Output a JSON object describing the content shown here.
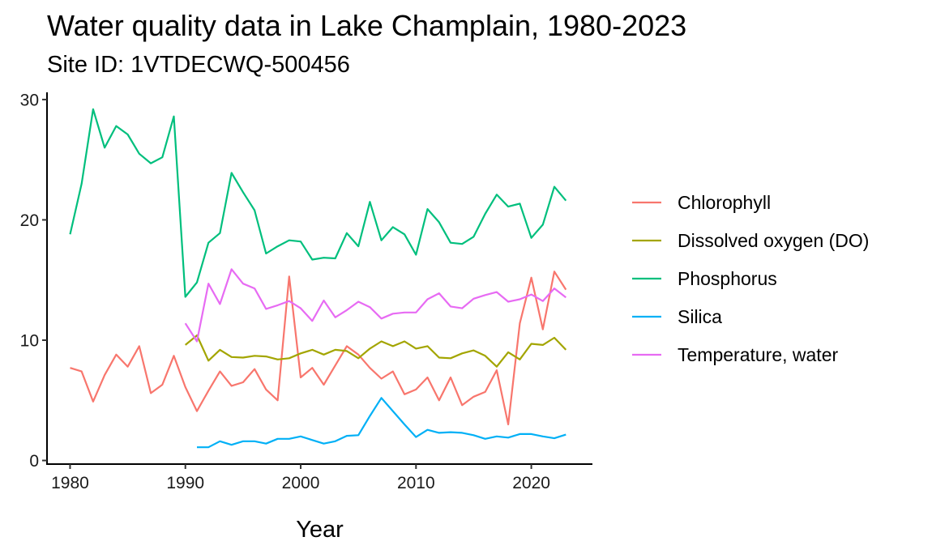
{
  "chart_data": {
    "type": "line",
    "title": "Water quality data in Lake Champlain, 1980-2023",
    "subtitle": "Site ID: 1VTDECWQ-500456",
    "xlabel": "Year",
    "ylabel": "",
    "xlim": [
      1978,
      2025.3
    ],
    "ylim": [
      -0.3,
      30.6
    ],
    "x_ticks": [
      1980,
      1990,
      2000,
      2010,
      2020
    ],
    "y_ticks": [
      0,
      10,
      20,
      30
    ],
    "grid": false,
    "legend_position": "right",
    "series": [
      {
        "name": "Chlorophyll",
        "color": "#F8766D",
        "x": [
          1980,
          1981,
          1982,
          1983,
          1984,
          1985,
          1986,
          1987,
          1988,
          1989,
          1990,
          1991,
          1992,
          1993,
          1994,
          1995,
          1996,
          1997,
          1998,
          1999,
          2000,
          2001,
          2002,
          2003,
          2004,
          2005,
          2006,
          2007,
          2008,
          2009,
          2010,
          2011,
          2012,
          2013,
          2014,
          2015,
          2016,
          2017,
          2018,
          2019,
          2020,
          2021,
          2022,
          2023
        ],
        "y": [
          7.7,
          7.4,
          4.9,
          7.1,
          8.8,
          7.8,
          9.5,
          5.6,
          6.3,
          8.7,
          6.1,
          4.1,
          5.8,
          7.4,
          6.2,
          6.5,
          7.6,
          5.9,
          5.0,
          15.3,
          6.9,
          7.7,
          6.3,
          7.9,
          9.5,
          8.8,
          7.7,
          6.8,
          7.4,
          5.5,
          5.9,
          6.9,
          5.0,
          6.9,
          4.6,
          5.3,
          5.7,
          7.5,
          3.0,
          11.4,
          15.2,
          10.9,
          15.7,
          14.2
        ]
      },
      {
        "name": "Dissolved oxygen (DO)",
        "color": "#A3A500",
        "x": [
          1990,
          1991,
          1992,
          1993,
          1994,
          1995,
          1996,
          1997,
          1998,
          1999,
          2000,
          2001,
          2002,
          2003,
          2004,
          2005,
          2006,
          2007,
          2008,
          2009,
          2010,
          2011,
          2012,
          2013,
          2014,
          2015,
          2016,
          2017,
          2018,
          2019,
          2020,
          2021,
          2022,
          2023
        ],
        "y": [
          9.6,
          10.4,
          8.3,
          9.2,
          8.6,
          8.55,
          8.7,
          8.65,
          8.4,
          8.5,
          8.9,
          9.2,
          8.8,
          9.2,
          9.1,
          8.5,
          9.3,
          9.9,
          9.5,
          9.9,
          9.3,
          9.5,
          8.55,
          8.5,
          8.9,
          9.15,
          8.7,
          7.8,
          9.0,
          8.4,
          9.7,
          9.6,
          10.2,
          9.2
        ]
      },
      {
        "name": "Phosphorus",
        "color": "#00BF7D",
        "x": [
          1980,
          1981,
          1982,
          1983,
          1984,
          1985,
          1986,
          1987,
          1988,
          1989,
          1990,
          1991,
          1992,
          1993,
          1994,
          1995,
          1996,
          1997,
          1998,
          1999,
          2000,
          2001,
          2002,
          2003,
          2004,
          2005,
          2006,
          2007,
          2008,
          2009,
          2010,
          2011,
          2012,
          2013,
          2014,
          2015,
          2016,
          2017,
          2018,
          2019,
          2020,
          2021,
          2022,
          2023
        ],
        "y": [
          18.8,
          23.0,
          29.2,
          26.0,
          27.8,
          27.1,
          25.5,
          24.7,
          25.2,
          28.6,
          13.6,
          14.8,
          18.1,
          18.9,
          23.9,
          22.3,
          20.8,
          17.2,
          17.8,
          18.3,
          18.2,
          16.7,
          16.85,
          16.8,
          18.9,
          17.8,
          21.5,
          18.3,
          19.4,
          18.8,
          17.1,
          20.9,
          19.8,
          18.1,
          18.0,
          18.6,
          20.5,
          22.1,
          21.1,
          21.35,
          18.5,
          19.6,
          22.75,
          21.6
        ]
      },
      {
        "name": "Silica",
        "color": "#00B0F6",
        "x": [
          1991,
          1992,
          1993,
          1994,
          1995,
          1996,
          1997,
          1998,
          1999,
          2000,
          2001,
          2002,
          2003,
          2004,
          2005,
          2006,
          2007,
          2008,
          2009,
          2010,
          2011,
          2012,
          2013,
          2014,
          2015,
          2016,
          2017,
          2018,
          2019,
          2020,
          2021,
          2022,
          2023
        ],
        "y": [
          1.1,
          1.1,
          1.6,
          1.3,
          1.6,
          1.6,
          1.4,
          1.8,
          1.8,
          2.0,
          1.7,
          1.4,
          1.6,
          2.05,
          2.1,
          3.7,
          5.2,
          4.1,
          3.0,
          1.95,
          2.55,
          2.3,
          2.35,
          2.3,
          2.1,
          1.8,
          2.0,
          1.9,
          2.2,
          2.2,
          2.0,
          1.85,
          2.15
        ]
      },
      {
        "name": "Temperature, water",
        "color": "#E76BF3",
        "x": [
          1990,
          1991,
          1992,
          1993,
          1994,
          1995,
          1996,
          1997,
          1998,
          1999,
          2000,
          2001,
          2002,
          2003,
          2004,
          2005,
          2006,
          2007,
          2008,
          2009,
          2010,
          2011,
          2012,
          2013,
          2014,
          2015,
          2016,
          2017,
          2018,
          2019,
          2020,
          2021,
          2022,
          2023
        ],
        "y": [
          11.4,
          9.9,
          14.7,
          13.0,
          15.9,
          14.7,
          14.3,
          12.6,
          12.9,
          13.25,
          12.65,
          11.6,
          13.3,
          11.9,
          12.5,
          13.2,
          12.75,
          11.8,
          12.2,
          12.3,
          12.3,
          13.4,
          13.9,
          12.8,
          12.65,
          13.45,
          13.75,
          14.0,
          13.2,
          13.4,
          13.8,
          13.25,
          14.3,
          13.55
        ]
      }
    ]
  }
}
